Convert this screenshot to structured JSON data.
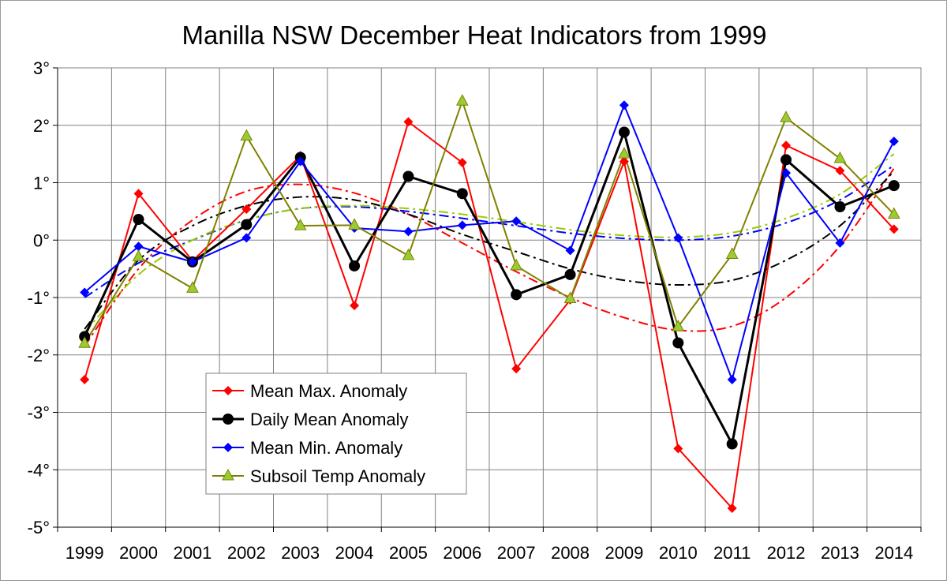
{
  "chart_data": {
    "type": "line",
    "title": "Manilla NSW December Heat Indicators from 1999",
    "xlabel": "",
    "ylabel": "",
    "ylim": [
      -5,
      3
    ],
    "yticks": [
      3,
      2,
      1,
      0,
      -1,
      -2,
      -3,
      -4,
      -5
    ],
    "ytick_labels": [
      "3°",
      "2°",
      "1°",
      "0°",
      "-1°",
      "-2°",
      "-3°",
      "-4°",
      "-5°"
    ],
    "grid": true,
    "legend_position": "bottom-left",
    "categories": [
      "1999",
      "2000",
      "2001",
      "2002",
      "2003",
      "2004",
      "2005",
      "2006",
      "2007",
      "2008",
      "2009",
      "2010",
      "2011",
      "2012",
      "2013",
      "2014"
    ],
    "series": [
      {
        "name": "Mean Max. Anomaly",
        "color": "#ff0000",
        "marker": "diamond",
        "values": [
          -2.43,
          0.81,
          -0.36,
          0.54,
          1.47,
          -1.14,
          2.06,
          1.35,
          -2.24,
          -1.04,
          1.37,
          -3.63,
          -4.67,
          1.65,
          1.21,
          0.19
        ],
        "trend": [
          -1.85,
          -0.5,
          0.35,
          0.85,
          0.97,
          0.82,
          0.45,
          -0.05,
          -0.55,
          -1.0,
          -1.35,
          -1.57,
          -1.5,
          -1.0,
          -0.1,
          1.25
        ]
      },
      {
        "name": "Daily Mean Anomaly",
        "color": "#000000",
        "marker": "circle",
        "values": [
          -1.68,
          0.36,
          -0.38,
          0.27,
          1.44,
          -0.45,
          1.11,
          0.81,
          -0.95,
          -0.6,
          1.88,
          -1.79,
          -3.55,
          1.4,
          0.58,
          0.95
        ],
        "trend": [
          -1.55,
          -0.35,
          0.25,
          0.6,
          0.75,
          0.7,
          0.45,
          0.1,
          -0.2,
          -0.5,
          -0.7,
          -0.78,
          -0.7,
          -0.35,
          0.25,
          1.2
        ]
      },
      {
        "name": "Mean Min. Anomaly",
        "color": "#0000ff",
        "marker": "diamond",
        "values": [
          -0.91,
          -0.11,
          -0.38,
          0.04,
          1.37,
          0.21,
          0.15,
          0.26,
          0.33,
          -0.18,
          2.35,
          0.04,
          -2.43,
          1.17,
          -0.05,
          1.72
        ],
        "trend": [
          -1.0,
          -0.4,
          0.0,
          0.35,
          0.55,
          0.58,
          0.5,
          0.38,
          0.25,
          0.12,
          0.03,
          0.0,
          0.07,
          0.3,
          0.7,
          1.3
        ]
      },
      {
        "name": "Subsoil Temp Anomaly",
        "color": "#808000",
        "marker": "triangle",
        "fill": "#99cc33",
        "values": [
          -1.8,
          -0.29,
          -0.84,
          1.81,
          0.25,
          0.26,
          -0.27,
          2.42,
          -0.45,
          -1.02,
          1.5,
          -1.51,
          -0.25,
          2.13,
          1.42,
          0.45
        ],
        "trend": [
          -1.6,
          -0.6,
          0.0,
          0.35,
          0.55,
          0.6,
          0.55,
          0.45,
          0.32,
          0.18,
          0.08,
          0.05,
          0.13,
          0.38,
          0.8,
          1.5
        ],
        "trend_color": "#99cc00"
      }
    ]
  }
}
